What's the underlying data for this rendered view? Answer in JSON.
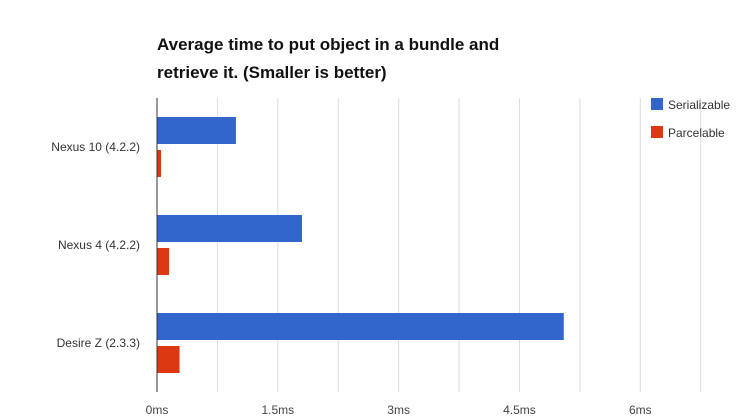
{
  "chart_data": {
    "type": "bar",
    "orientation": "horizontal",
    "title_lines": [
      "Average time to put object in a bundle and",
      "retrieve it. (Smaller is better)"
    ],
    "xlabel": "",
    "ylabel": "",
    "categories": [
      "Nexus 10 (4.2.2)",
      "Nexus 4 (4.2.2)",
      "Desire Z (2.3.3)"
    ],
    "series": [
      {
        "name": "Serializable",
        "color": "#3366cc",
        "values": [
          0.98,
          1.8,
          5.05
        ]
      },
      {
        "name": "Parcelable",
        "color": "#dc3912",
        "values": [
          0.05,
          0.15,
          0.28
        ]
      }
    ],
    "xlim": [
      0,
      7.3
    ],
    "x_ticks": [
      0,
      1.5,
      3,
      4.5,
      6
    ],
    "x_tick_labels": [
      "0ms",
      "1.5ms",
      "3ms",
      "4.5ms",
      "6ms"
    ],
    "grid": true,
    "legend_position": "top-right"
  }
}
